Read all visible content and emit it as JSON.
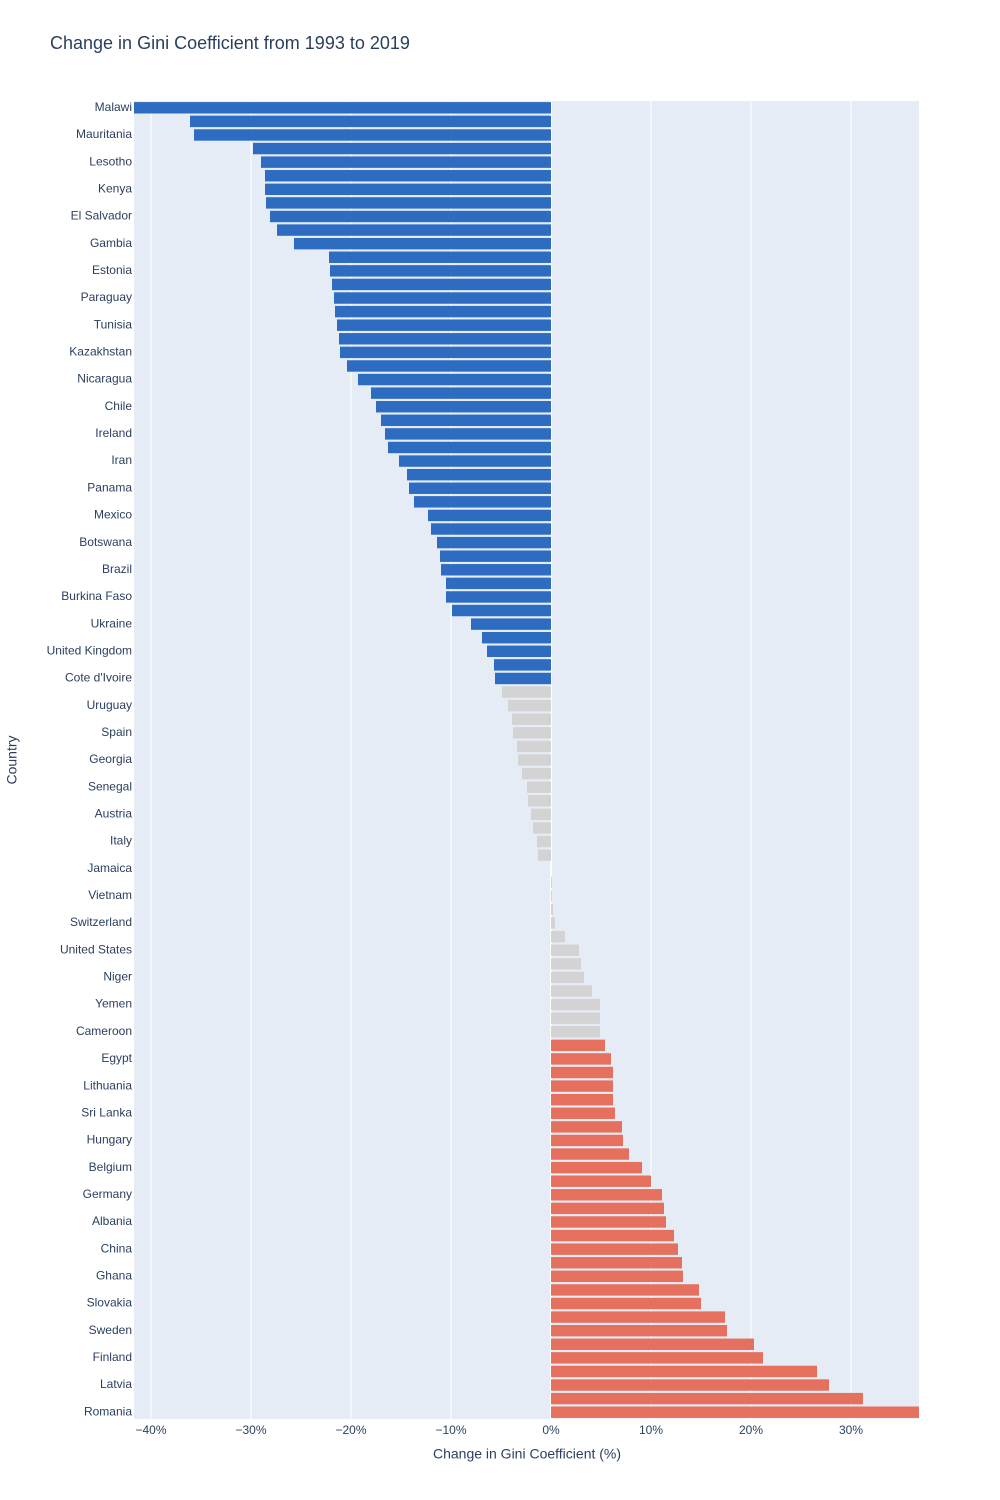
{
  "chart_data": {
    "type": "bar",
    "orientation": "horizontal",
    "title": "Change in Gini Coefficient from 1993 to 2019",
    "x_label": "Change in Gini Coefficient (%)",
    "y_label": "Country",
    "categories": [
      "Malawi",
      null,
      "Mauritania",
      null,
      "Lesotho",
      null,
      "Kenya",
      null,
      "El Salvador",
      null,
      "Gambia",
      null,
      "Estonia",
      null,
      "Paraguay",
      null,
      "Tunisia",
      null,
      "Kazakhstan",
      null,
      "Nicaragua",
      null,
      "Chile",
      null,
      "Ireland",
      null,
      "Iran",
      null,
      "Panama",
      null,
      "Mexico",
      null,
      "Botswana",
      null,
      "Brazil",
      null,
      "Burkina Faso",
      null,
      "Ukraine",
      null,
      "United Kingdom",
      null,
      "Cote d'Ivoire",
      null,
      "Uruguay",
      null,
      "Spain",
      null,
      "Georgia",
      null,
      "Senegal",
      null,
      "Austria",
      null,
      "Italy",
      null,
      "Jamaica",
      null,
      "Vietnam",
      null,
      "Switzerland",
      null,
      "United States",
      null,
      "Niger",
      null,
      "Yemen",
      null,
      "Cameroon",
      null,
      "Egypt",
      null,
      "Lithuania",
      null,
      "Sri Lanka",
      null,
      "Hungary",
      null,
      "Belgium",
      null,
      "Germany",
      null,
      "Albania",
      null,
      "China",
      null,
      "Ghana",
      null,
      "Slovakia",
      null,
      "Sweden",
      null,
      "Finland",
      null,
      "Latvia",
      null,
      "Romania"
    ],
    "values": [
      -41.7,
      -36.1,
      -35.7,
      -29.8,
      -29.0,
      -28.6,
      -28.6,
      -28.5,
      -28.1,
      -27.4,
      -25.7,
      -22.2,
      -22.1,
      -21.9,
      -21.7,
      -21.6,
      -21.4,
      -21.2,
      -21.1,
      -20.4,
      -19.3,
      -18.0,
      -17.5,
      -17.0,
      -16.6,
      -16.3,
      -15.2,
      -14.4,
      -14.2,
      -13.7,
      -12.3,
      -12.0,
      -11.4,
      -11.1,
      -11.0,
      -10.5,
      -10.5,
      -9.9,
      -8.0,
      -6.9,
      -6.4,
      -5.7,
      -5.6,
      -4.9,
      -4.3,
      -3.9,
      -3.8,
      -3.4,
      -3.3,
      -2.9,
      -2.4,
      -2.3,
      -2.0,
      -1.8,
      -1.4,
      -1.3,
      0,
      0.1,
      0.1,
      0.2,
      0.4,
      1.4,
      2.8,
      3.0,
      3.3,
      4.1,
      4.9,
      4.9,
      4.9,
      5.4,
      6.0,
      6.2,
      6.2,
      6.2,
      6.4,
      7.1,
      7.2,
      7.8,
      9.1,
      10.0,
      11.1,
      11.3,
      11.5,
      12.3,
      12.7,
      13.1,
      13.2,
      14.8,
      15.0,
      17.4,
      17.6,
      20.3,
      21.2,
      26.6,
      27.8,
      31.2,
      36.8
    ],
    "colors": [
      "#2d6cc0",
      "#2d6cc0",
      "#2d6cc0",
      "#2d6cc0",
      "#2d6cc0",
      "#2d6cc0",
      "#2d6cc0",
      "#2d6cc0",
      "#2d6cc0",
      "#2d6cc0",
      "#2d6cc0",
      "#2d6cc0",
      "#2d6cc0",
      "#2d6cc0",
      "#2d6cc0",
      "#2d6cc0",
      "#2d6cc0",
      "#2d6cc0",
      "#2d6cc0",
      "#2d6cc0",
      "#2d6cc0",
      "#2d6cc0",
      "#2d6cc0",
      "#2d6cc0",
      "#2d6cc0",
      "#2d6cc0",
      "#2d6cc0",
      "#2d6cc0",
      "#2d6cc0",
      "#2d6cc0",
      "#2d6cc0",
      "#2d6cc0",
      "#2d6cc0",
      "#2d6cc0",
      "#2d6cc0",
      "#2d6cc0",
      "#2d6cc0",
      "#2d6cc0",
      "#2d6cc0",
      "#2d6cc0",
      "#2d6cc0",
      "#2d6cc0",
      "#2d6cc0",
      "#d3d3d3",
      "#d3d3d3",
      "#d3d3d3",
      "#d3d3d3",
      "#d3d3d3",
      "#d3d3d3",
      "#d3d3d3",
      "#d3d3d3",
      "#d3d3d3",
      "#d3d3d3",
      "#d3d3d3",
      "#d3d3d3",
      "#d3d3d3",
      "#d3d3d3",
      "#d3d3d3",
      "#d3d3d3",
      "#d3d3d3",
      "#d3d3d3",
      "#d3d3d3",
      "#d3d3d3",
      "#d3d3d3",
      "#d3d3d3",
      "#d3d3d3",
      "#d3d3d3",
      "#d3d3d3",
      "#d3d3d3",
      "#e5705e",
      "#e5705e",
      "#e5705e",
      "#e5705e",
      "#e5705e",
      "#e5705e",
      "#e5705e",
      "#e5705e",
      "#e5705e",
      "#e5705e",
      "#e5705e",
      "#e5705e",
      "#e5705e",
      "#e5705e",
      "#e5705e",
      "#e5705e",
      "#e5705e",
      "#e5705e",
      "#e5705e",
      "#e5705e",
      "#e5705e",
      "#e5705e",
      "#e5705e",
      "#e5705e",
      "#e5705e",
      "#e5705e",
      "#e5705e",
      "#e5705e"
    ],
    "xlim": [
      -41.7,
      36.8
    ],
    "xticks": [
      {
        "value": -40,
        "label": "−40%"
      },
      {
        "value": -30,
        "label": "−30%"
      },
      {
        "value": -20,
        "label": "−20%"
      },
      {
        "value": -10,
        "label": "−10%"
      },
      {
        "value": 0,
        "label": "0%"
      },
      {
        "value": 10,
        "label": "10%"
      },
      {
        "value": 20,
        "label": "20%"
      },
      {
        "value": 30,
        "label": "30%"
      }
    ],
    "grid": true
  }
}
